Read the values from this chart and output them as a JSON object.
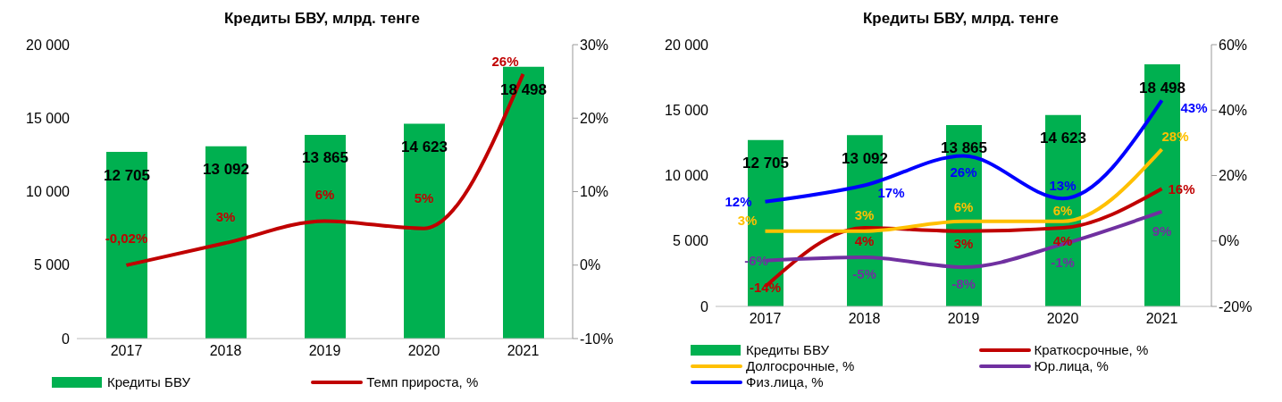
{
  "chart_data": [
    {
      "type": "bar",
      "title": "Кредиты БВУ, млрд. тенге",
      "categories": [
        "2017",
        "2018",
        "2019",
        "2020",
        "2021"
      ],
      "legend": "bottom",
      "grid": false,
      "ylim": [
        0,
        20000
      ],
      "yticks": [
        {
          "value": 0,
          "label": "0"
        },
        {
          "value": 5000,
          "label": "5 000"
        },
        {
          "value": 10000,
          "label": "10 000"
        },
        {
          "value": 15000,
          "label": "15 000"
        },
        {
          "value": 20000,
          "label": "20 000"
        }
      ],
      "y2lim": [
        -10,
        30
      ],
      "y2ticks": [
        {
          "value": -10,
          "label": "-10%"
        },
        {
          "value": 0,
          "label": "0%"
        },
        {
          "value": 10,
          "label": "10%"
        },
        {
          "value": 20,
          "label": "20%"
        },
        {
          "value": 30,
          "label": "30%"
        }
      ],
      "series": [
        {
          "name": "Кредиты БВУ",
          "color": "#00b050",
          "values": [
            12705,
            13092,
            13865,
            14623,
            18498
          ],
          "value_labels": [
            "12 705",
            "13 092",
            "13 865",
            "14 623",
            "18 498"
          ]
        },
        {
          "name": "Темп прироста, %",
          "type": "line",
          "axis": "y2",
          "color": "#c00000",
          "values": [
            -0.02,
            3,
            6,
            5,
            26
          ],
          "value_labels": [
            "-0,02%",
            "3%",
            "6%",
            "5%",
            "26%"
          ]
        }
      ]
    },
    {
      "type": "bar",
      "title": "Кредиты БВУ, млрд. тенге",
      "categories": [
        "2017",
        "2018",
        "2019",
        "2020",
        "2021"
      ],
      "legend": "bottom",
      "grid": false,
      "ylim": [
        0,
        20000
      ],
      "yticks": [
        {
          "value": 0,
          "label": "0"
        },
        {
          "value": 5000,
          "label": "5 000"
        },
        {
          "value": 10000,
          "label": "10 000"
        },
        {
          "value": 15000,
          "label": "15 000"
        },
        {
          "value": 20000,
          "label": "20 000"
        }
      ],
      "y2lim": [
        -20,
        60
      ],
      "y2ticks": [
        {
          "value": -20,
          "label": "-20%"
        },
        {
          "value": 0,
          "label": "0%"
        },
        {
          "value": 20,
          "label": "20%"
        },
        {
          "value": 40,
          "label": "40%"
        },
        {
          "value": 60,
          "label": "60%"
        }
      ],
      "series": [
        {
          "name": "Кредиты БВУ",
          "color": "#00b050",
          "values": [
            12705,
            13092,
            13865,
            14623,
            18498
          ],
          "value_labels": [
            "12 705",
            "13 092",
            "13 865",
            "14 623",
            "18 498"
          ]
        },
        {
          "name": "Краткосрочные, %",
          "type": "line",
          "axis": "y2",
          "color": "#c00000",
          "values": [
            -14,
            4,
            3,
            4,
            16
          ],
          "value_labels": [
            "-14%",
            "4%",
            "3%",
            "4%",
            "16%"
          ]
        },
        {
          "name": "Долгосрочные, %",
          "type": "line",
          "axis": "y2",
          "color": "#ffc000",
          "values": [
            3,
            3,
            6,
            6,
            28
          ],
          "value_labels": [
            "3%",
            "3%",
            "6%",
            "6%",
            "28%"
          ]
        },
        {
          "name": "Юр.лица, %",
          "type": "line",
          "axis": "y2",
          "color": "#7030a0",
          "values": [
            -6,
            -5,
            -8,
            -1,
            9
          ],
          "value_labels": [
            "-6%",
            "-5%",
            "-8%",
            "-1%",
            "9%"
          ]
        },
        {
          "name": "Физ.лица, %",
          "type": "line",
          "axis": "y2",
          "color": "#0000ff",
          "values": [
            12,
            17,
            26,
            13,
            43
          ],
          "value_labels": [
            "12%",
            "17%",
            "26%",
            "13%",
            "43%"
          ]
        }
      ]
    }
  ]
}
